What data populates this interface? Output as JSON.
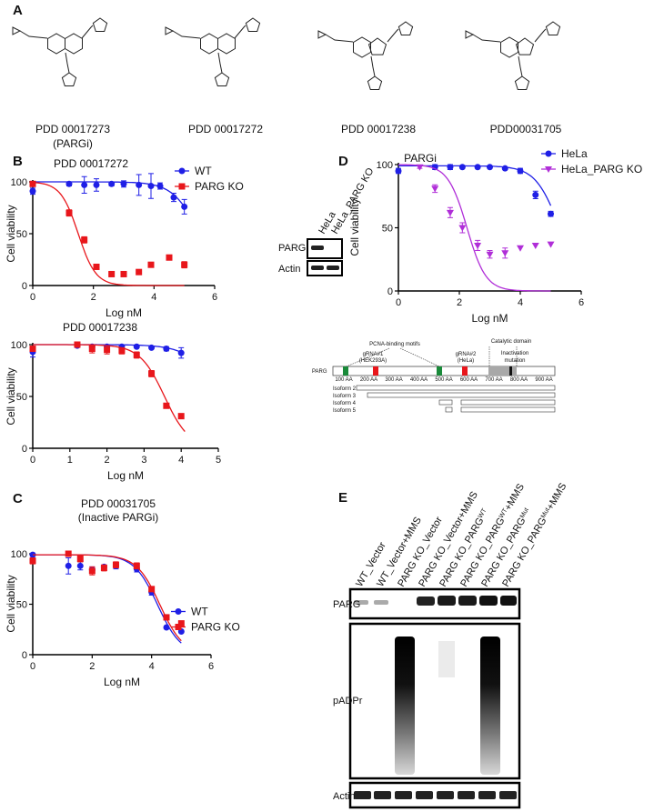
{
  "panels": [
    "A",
    "B",
    "C",
    "D",
    "E"
  ],
  "compounds": [
    {
      "name": "PDD 00017273",
      "note": "(PARGi)"
    },
    {
      "name": "PDD 00017272"
    },
    {
      "name": "PDD 00017238"
    },
    {
      "name": "PDD00031705"
    }
  ],
  "chart_data": [
    {
      "type": "scatter",
      "title": "PDD 00017272",
      "x_label": "Log nM",
      "y_label": "Cell viability",
      "xlim": [
        0,
        6
      ],
      "xticks": [
        0,
        2,
        4,
        6
      ],
      "ylim": [
        0,
        100
      ],
      "yticks": [
        0,
        50,
        100
      ],
      "legend": "upper right",
      "series": [
        {
          "name": "WT",
          "color": "#1f1fe6",
          "marker": "circle",
          "x": [
            0,
            1.2,
            1.7,
            2.1,
            2.6,
            3.0,
            3.5,
            3.9,
            4.2,
            4.65,
            5.0
          ],
          "values": [
            91,
            98,
            97,
            97,
            98,
            98,
            97,
            96,
            96,
            85,
            76
          ],
          "errors": [
            3,
            2,
            8,
            6,
            2,
            3,
            10,
            12,
            3,
            4,
            7
          ],
          "fit": {
            "top": 100,
            "bottom": 0,
            "logic50": 5.5,
            "hill": 1,
            "range": [
              0,
              5
            ]
          }
        },
        {
          "name": "PARG KO",
          "color": "#e8161b",
          "marker": "square",
          "x": [
            0,
            1.2,
            1.7,
            2.1,
            2.6,
            3.0,
            3.5,
            3.9,
            4.5,
            5.0
          ],
          "values": [
            98,
            70,
            44,
            18,
            11,
            11,
            13,
            20,
            27,
            20
          ],
          "errors": [
            1,
            3,
            3,
            2,
            0,
            0,
            0,
            0,
            0,
            3
          ],
          "fit": {
            "top": 100,
            "bottom": 0,
            "logic50": 1.5,
            "hill": 1.5,
            "range": [
              0,
              5
            ]
          }
        }
      ]
    },
    {
      "type": "scatter",
      "title": "PDD 00017238",
      "x_label": "Log nM",
      "y_label": "Cell viability",
      "xlim": [
        0,
        5
      ],
      "xticks": [
        0,
        1,
        2,
        3,
        4,
        5
      ],
      "ylim": [
        0,
        100
      ],
      "yticks": [
        0,
        50,
        100
      ],
      "legend": "none",
      "series": [
        {
          "color": "#1f1fe6",
          "marker": "circle",
          "x": [
            0,
            1.2,
            1.6,
            2.0,
            2.4,
            2.8,
            3.2,
            3.6,
            4.0
          ],
          "values": [
            93,
            99,
            98,
            98,
            98,
            98,
            97,
            96,
            92
          ],
          "errors": [
            5,
            1,
            1,
            2,
            1,
            1,
            1,
            2,
            5
          ],
          "fit": {
            "top": 100,
            "bottom": 0,
            "logic50": 5.1,
            "hill": 1,
            "range": [
              0,
              4
            ]
          }
        },
        {
          "color": "#e8161b",
          "marker": "square",
          "x": [
            0,
            1.2,
            1.6,
            2.0,
            2.4,
            2.8,
            3.2,
            3.6,
            4.0
          ],
          "values": [
            96,
            100,
            96,
            95,
            94,
            90,
            72,
            41,
            31
          ],
          "errors": [
            2,
            2,
            4,
            4,
            3,
            3,
            3,
            1,
            1
          ],
          "fit": {
            "top": 100,
            "bottom": 0,
            "logic50": 3.55,
            "hill": 1.3,
            "range": [
              0,
              4.1
            ]
          }
        }
      ]
    },
    {
      "type": "scatter",
      "title": "PDD 00031705",
      "subtitle": "(Inactive PARGi)",
      "x_label": "Log nM",
      "y_label": "Cell viability",
      "xlim": [
        0,
        6
      ],
      "xticks": [
        0,
        2,
        4,
        6
      ],
      "ylim": [
        0,
        100
      ],
      "yticks": [
        0,
        50,
        100
      ],
      "legend": "center right",
      "series": [
        {
          "name": "WT",
          "color": "#1f1fe6",
          "marker": "circle",
          "x": [
            0,
            1.2,
            1.6,
            2.0,
            2.4,
            2.8,
            3.5,
            4.0,
            4.5,
            5.0
          ],
          "values": [
            99,
            88,
            88,
            84,
            87,
            88,
            85,
            62,
            27,
            23
          ],
          "errors": [
            1,
            8,
            4,
            3,
            2,
            3,
            3,
            3,
            1,
            1
          ],
          "fit": {
            "top": 99,
            "bottom": 0,
            "logic50": 4.2,
            "hill": 1.1,
            "range": [
              0,
              5
            ]
          }
        },
        {
          "name": "PARG KO",
          "color": "#e8161b",
          "marker": "square",
          "x": [
            0,
            1.2,
            1.6,
            2.0,
            2.4,
            2.8,
            3.5,
            4.0,
            4.5,
            5.0
          ],
          "values": [
            93,
            100,
            95,
            83,
            86,
            89,
            88,
            65,
            37,
            31
          ],
          "errors": [
            3,
            1,
            3,
            4,
            3,
            3,
            3,
            2,
            1,
            1
          ],
          "fit": {
            "top": 99,
            "bottom": 0,
            "logic50": 4.28,
            "hill": 1.1,
            "range": [
              0,
              5
            ]
          }
        }
      ]
    },
    {
      "type": "scatter",
      "title": "PARGi",
      "x_label": "Log nM",
      "y_label": "Cell viability",
      "xlim": [
        0,
        6
      ],
      "xticks": [
        0,
        2,
        4,
        6
      ],
      "ylim": [
        0,
        100
      ],
      "yticks": [
        0,
        50,
        100
      ],
      "legend": "upper right",
      "series": [
        {
          "name": "HeLa",
          "color": "#1f1fe6",
          "marker": "circle",
          "x": [
            0,
            1.2,
            1.7,
            2.1,
            2.6,
            3.0,
            3.5,
            4.0,
            4.5,
            5.0
          ],
          "values": [
            95,
            98,
            98,
            98,
            98,
            98,
            97,
            95,
            76,
            61
          ],
          "errors": [
            2,
            2,
            2,
            1,
            1,
            1,
            1,
            2,
            3,
            2
          ],
          "fit": {
            "top": 99,
            "bottom": 0,
            "logic50": 5.3,
            "hill": 1.1,
            "range": [
              0,
              5
            ]
          }
        },
        {
          "name": "HeLa_PARG KO",
          "color": "#b02ed8",
          "marker": "triangle-down",
          "x": [
            0.7,
            1.2,
            1.7,
            2.1,
            2.6,
            3.0,
            3.5,
            4.0,
            4.5,
            5.0
          ],
          "values": [
            98,
            81,
            62,
            50,
            36,
            29,
            30,
            34,
            36,
            37
          ],
          "errors": [
            1,
            3,
            4,
            4,
            4,
            3,
            4,
            0,
            0,
            0
          ],
          "fit": {
            "top": 100,
            "bottom": 0,
            "logic50": 2.25,
            "hill": 1.4,
            "range": [
              0,
              5
            ]
          }
        }
      ]
    }
  ],
  "blot_d": {
    "lanes": [
      "HeLa",
      "HeLa_PARG KO"
    ],
    "rows": [
      "PARG",
      "Actin"
    ]
  },
  "isoforms": {
    "protein": "PARG",
    "motifs": "PCNA-binding motifs",
    "grna1": [
      "gRNA#1",
      "(HEK293A)"
    ],
    "grna2": [
      "gRNA#2",
      "(HeLa)"
    ],
    "domain": "Catalytic domain",
    "mutation": [
      "Inactivation",
      "mutation"
    ],
    "aa_ticks": [
      "100 AA",
      "200 AA",
      "300 AA",
      "400 AA",
      "500 AA",
      "600 AA",
      "700 AA",
      "800 AA",
      "900 AA"
    ],
    "rows": [
      "Isoform 2",
      "Isoform 3",
      "Isoform 4",
      "Isoform 5"
    ]
  },
  "blot_e": {
    "lanes": [
      "WT_Vector",
      "WT_Vector+MMS",
      "PARG KO_Vector",
      "PARG KO_Vector+MMS",
      {
        "text": "PARG KO_PARG",
        "sup": "WT"
      },
      {
        "text": "PARG KO_PARG",
        "sup": "WT",
        "tail": "+MMS"
      },
      {
        "text": "PARG KO_PARG",
        "sup": "Mut"
      },
      {
        "text": "PARG KO_PARG",
        "sup": "Mut",
        "tail": "+MMS"
      }
    ],
    "rows": [
      "PARG",
      "pADPr",
      "Actin"
    ]
  }
}
